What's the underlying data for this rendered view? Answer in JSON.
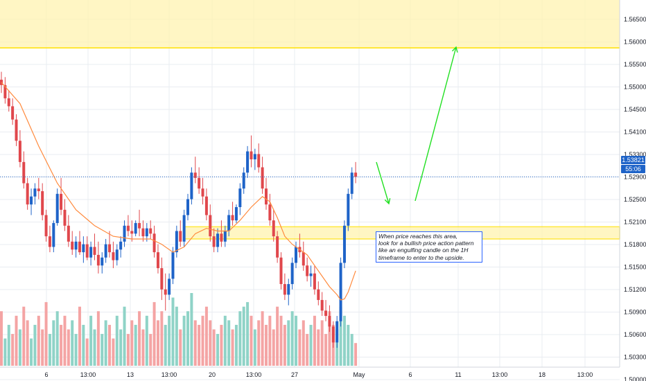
{
  "colors": {
    "up": "#1e63c8",
    "down": "#e0474c",
    "ma": "#ff8a3d",
    "zone_fill": "#fff3b0",
    "zone_border": "#ffe100",
    "arrow": "#21e021",
    "price_line": "#1e63c8",
    "badge": "#1e63c8",
    "vol_up": "#8fd3c7",
    "vol_down": "#f4a4a4",
    "grid": "#e9ecf1",
    "text": "#131722"
  },
  "annotation": {
    "lines": [
      "When price reaches this area,",
      "look for a bullish price action pattern",
      "like an engulfing candle on the 1H",
      "timeframe to enter to the upside."
    ]
  },
  "price_badge": {
    "price": "1.53821",
    "countdown": "55:06"
  },
  "chart_data": {
    "type": "candlestick",
    "grid": true,
    "ylim": [
      1.5,
      1.571
    ],
    "yticks": [
      "1.56500",
      "1.56000",
      "1.55500",
      "1.55000",
      "1.54500",
      "1.54100",
      "1.53300",
      "1.52900",
      "1.52500",
      "1.52100",
      "1.51800",
      "1.51500",
      "1.51200",
      "1.50900",
      "1.50600",
      "1.50300",
      "1.50000"
    ],
    "xticks": [
      "6",
      "13:00",
      "13",
      "13:00",
      "20",
      "13:00",
      "27",
      "May",
      "6",
      "11",
      "13:00",
      "18",
      "13:00"
    ],
    "last_price": 1.53821,
    "zones": [
      {
        "from": 1.5625,
        "to": 1.571
      },
      {
        "from": 1.5265,
        "to": 1.5288
      }
    ],
    "candles": [
      [
        1.5565,
        1.558,
        1.554,
        1.5555
      ],
      [
        1.5555,
        1.557,
        1.552,
        1.553
      ],
      [
        1.553,
        1.5545,
        1.5505,
        1.5515
      ],
      [
        1.5515,
        1.553,
        1.548,
        1.549
      ],
      [
        1.549,
        1.55,
        1.544,
        1.545
      ],
      [
        1.545,
        1.547,
        1.54,
        1.541
      ],
      [
        1.541,
        1.543,
        1.536,
        1.537
      ],
      [
        1.537,
        1.538,
        1.532,
        1.533
      ],
      [
        1.533,
        1.536,
        1.531,
        1.5345
      ],
      [
        1.5345,
        1.537,
        1.533,
        1.536
      ],
      [
        1.536,
        1.538,
        1.534,
        1.5355
      ],
      [
        1.5355,
        1.537,
        1.53,
        1.531
      ],
      [
        1.531,
        1.532,
        1.526,
        1.527
      ],
      [
        1.527,
        1.529,
        1.524,
        1.525
      ],
      [
        1.525,
        1.53,
        1.524,
        1.5295
      ],
      [
        1.5295,
        1.536,
        1.529,
        1.535
      ],
      [
        1.535,
        1.538,
        1.531,
        1.532
      ],
      [
        1.532,
        1.534,
        1.528,
        1.529
      ],
      [
        1.529,
        1.531,
        1.525,
        1.526
      ],
      [
        1.526,
        1.528,
        1.5235,
        1.5245
      ],
      [
        1.5245,
        1.527,
        1.523,
        1.526
      ],
      [
        1.526,
        1.528,
        1.5235,
        1.524
      ],
      [
        1.524,
        1.527,
        1.522,
        1.5255
      ],
      [
        1.5255,
        1.527,
        1.5225,
        1.523
      ],
      [
        1.523,
        1.526,
        1.5215,
        1.525
      ],
      [
        1.525,
        1.5275,
        1.5225,
        1.5235
      ],
      [
        1.5235,
        1.526,
        1.52,
        1.5215
      ],
      [
        1.5215,
        1.524,
        1.52,
        1.523
      ],
      [
        1.523,
        1.5265,
        1.522,
        1.5255
      ],
      [
        1.5255,
        1.528,
        1.523,
        1.524
      ],
      [
        1.524,
        1.526,
        1.521,
        1.5225
      ],
      [
        1.5225,
        1.5255,
        1.5215,
        1.5245
      ],
      [
        1.5245,
        1.527,
        1.523,
        1.526
      ],
      [
        1.526,
        1.53,
        1.525,
        1.529
      ],
      [
        1.529,
        1.531,
        1.527,
        1.528
      ],
      [
        1.528,
        1.53,
        1.526,
        1.5275
      ],
      [
        1.5275,
        1.53,
        1.527,
        1.5295
      ],
      [
        1.5295,
        1.532,
        1.527,
        1.5285
      ],
      [
        1.5285,
        1.53,
        1.526,
        1.527
      ],
      [
        1.527,
        1.5295,
        1.526,
        1.5285
      ],
      [
        1.5285,
        1.53,
        1.5265,
        1.5275
      ],
      [
        1.5275,
        1.529,
        1.523,
        1.524
      ],
      [
        1.524,
        1.5255,
        1.52,
        1.521
      ],
      [
        1.521,
        1.523,
        1.515,
        1.517
      ],
      [
        1.517,
        1.52,
        1.513,
        1.516
      ],
      [
        1.516,
        1.52,
        1.515,
        1.519
      ],
      [
        1.519,
        1.525,
        1.518,
        1.524
      ],
      [
        1.524,
        1.529,
        1.523,
        1.528
      ],
      [
        1.528,
        1.53,
        1.525,
        1.526
      ],
      [
        1.526,
        1.532,
        1.525,
        1.531
      ],
      [
        1.531,
        1.535,
        1.53,
        1.534
      ],
      [
        1.534,
        1.54,
        1.533,
        1.539
      ],
      [
        1.539,
        1.542,
        1.537,
        1.538
      ],
      [
        1.538,
        1.54,
        1.535,
        1.536
      ],
      [
        1.536,
        1.538,
        1.533,
        1.5345
      ],
      [
        1.5345,
        1.536,
        1.53,
        1.531
      ],
      [
        1.531,
        1.533,
        1.526,
        1.527
      ],
      [
        1.527,
        1.5285,
        1.524,
        1.525
      ],
      [
        1.525,
        1.5285,
        1.524,
        1.5275
      ],
      [
        1.5275,
        1.53,
        1.525,
        1.526
      ],
      [
        1.526,
        1.529,
        1.525,
        1.528
      ],
      [
        1.528,
        1.532,
        1.527,
        1.531
      ],
      [
        1.531,
        1.5335,
        1.529,
        1.53
      ],
      [
        1.53,
        1.533,
        1.5295,
        1.5325
      ],
      [
        1.5325,
        1.537,
        1.531,
        1.536
      ],
      [
        1.536,
        1.54,
        1.535,
        1.539
      ],
      [
        1.539,
        1.544,
        1.538,
        1.543
      ],
      [
        1.543,
        1.546,
        1.54,
        1.5415
      ],
      [
        1.5415,
        1.5435,
        1.5395,
        1.5425
      ],
      [
        1.5425,
        1.5445,
        1.539,
        1.54
      ],
      [
        1.54,
        1.542,
        1.535,
        1.536
      ],
      [
        1.536,
        1.538,
        1.532,
        1.533
      ],
      [
        1.533,
        1.535,
        1.529,
        1.53
      ],
      [
        1.53,
        1.532,
        1.526,
        1.527
      ],
      [
        1.527,
        1.528,
        1.522,
        1.523
      ],
      [
        1.523,
        1.524,
        1.517,
        1.518
      ],
      [
        1.518,
        1.52,
        1.515,
        1.516
      ],
      [
        1.516,
        1.519,
        1.514,
        1.518
      ],
      [
        1.518,
        1.523,
        1.517,
        1.522
      ],
      [
        1.522,
        1.526,
        1.521,
        1.525
      ],
      [
        1.525,
        1.5275,
        1.523,
        1.524
      ],
      [
        1.524,
        1.526,
        1.5205,
        1.5215
      ],
      [
        1.5215,
        1.523,
        1.5185,
        1.5195
      ],
      [
        1.5195,
        1.5215,
        1.5175,
        1.52
      ],
      [
        1.52,
        1.5215,
        1.516,
        1.517
      ],
      [
        1.517,
        1.5185,
        1.514,
        1.515
      ],
      [
        1.515,
        1.5165,
        1.512,
        1.513
      ],
      [
        1.513,
        1.515,
        1.511,
        1.512
      ],
      [
        1.512,
        1.514,
        1.509,
        1.51
      ],
      [
        1.51,
        1.511,
        1.506,
        1.507
      ],
      [
        1.507,
        1.512,
        1.506,
        1.511
      ],
      [
        1.511,
        1.523,
        1.51,
        1.522
      ],
      [
        1.522,
        1.53,
        1.521,
        1.529
      ],
      [
        1.529,
        1.536,
        1.528,
        1.535
      ],
      [
        1.535,
        1.54,
        1.534,
        1.539
      ],
      [
        1.539,
        1.541,
        1.537,
        1.53821
      ]
    ],
    "volume": [
      [
        60,
        0
      ],
      [
        30,
        1
      ],
      [
        45,
        1
      ],
      [
        35,
        0
      ],
      [
        55,
        0
      ],
      [
        40,
        1
      ],
      [
        65,
        0
      ],
      [
        50,
        0
      ],
      [
        30,
        1
      ],
      [
        45,
        1
      ],
      [
        55,
        0
      ],
      [
        40,
        0
      ],
      [
        70,
        0
      ],
      [
        35,
        1
      ],
      [
        50,
        1
      ],
      [
        60,
        1
      ],
      [
        45,
        0
      ],
      [
        55,
        0
      ],
      [
        40,
        0
      ],
      [
        50,
        1
      ],
      [
        35,
        1
      ],
      [
        65,
        0
      ],
      [
        45,
        1
      ],
      [
        30,
        0
      ],
      [
        55,
        1
      ],
      [
        40,
        1
      ],
      [
        60,
        0
      ],
      [
        35,
        1
      ],
      [
        50,
        1
      ],
      [
        45,
        0
      ],
      [
        30,
        0
      ],
      [
        55,
        1
      ],
      [
        40,
        1
      ],
      [
        65,
        1
      ],
      [
        35,
        0
      ],
      [
        50,
        0
      ],
      [
        45,
        1
      ],
      [
        60,
        0
      ],
      [
        40,
        0
      ],
      [
        55,
        1
      ],
      [
        35,
        0
      ],
      [
        70,
        0
      ],
      [
        50,
        0
      ],
      [
        60,
        0
      ],
      [
        45,
        1
      ],
      [
        55,
        1
      ],
      [
        75,
        1
      ],
      [
        65,
        1
      ],
      [
        40,
        0
      ],
      [
        55,
        1
      ],
      [
        60,
        1
      ],
      [
        80,
        1
      ],
      [
        50,
        0
      ],
      [
        45,
        0
      ],
      [
        55,
        0
      ],
      [
        65,
        0
      ],
      [
        50,
        0
      ],
      [
        40,
        0
      ],
      [
        35,
        1
      ],
      [
        45,
        0
      ],
      [
        55,
        1
      ],
      [
        50,
        1
      ],
      [
        40,
        0
      ],
      [
        45,
        1
      ],
      [
        60,
        1
      ],
      [
        65,
        1
      ],
      [
        70,
        1
      ],
      [
        55,
        0
      ],
      [
        40,
        1
      ],
      [
        50,
        0
      ],
      [
        60,
        0
      ],
      [
        45,
        0
      ],
      [
        55,
        0
      ],
      [
        40,
        0
      ],
      [
        65,
        0
      ],
      [
        55,
        0
      ],
      [
        45,
        0
      ],
      [
        50,
        1
      ],
      [
        60,
        1
      ],
      [
        55,
        1
      ],
      [
        40,
        0
      ],
      [
        50,
        0
      ],
      [
        35,
        0
      ],
      [
        45,
        1
      ],
      [
        55,
        0
      ],
      [
        40,
        0
      ],
      [
        50,
        0
      ],
      [
        35,
        0
      ],
      [
        60,
        0
      ],
      [
        45,
        0
      ],
      [
        40,
        1
      ],
      [
        65,
        1
      ],
      [
        55,
        1
      ],
      [
        45,
        1
      ],
      [
        35,
        1
      ],
      [
        25,
        0
      ]
    ],
    "moving_average": [
      [
        0,
        1.556
      ],
      [
        5,
        1.552
      ],
      [
        10,
        1.544
      ],
      [
        15,
        1.537
      ],
      [
        20,
        1.532
      ],
      [
        25,
        1.529
      ],
      [
        30,
        1.527
      ],
      [
        35,
        1.5265
      ],
      [
        40,
        1.5265
      ],
      [
        43,
        1.5255
      ],
      [
        46,
        1.524
      ],
      [
        49,
        1.525
      ],
      [
        52,
        1.5275
      ],
      [
        55,
        1.5285
      ],
      [
        58,
        1.528
      ],
      [
        61,
        1.528
      ],
      [
        64,
        1.53
      ],
      [
        67,
        1.5325
      ],
      [
        70,
        1.5345
      ],
      [
        72,
        1.5335
      ],
      [
        74,
        1.5305
      ],
      [
        76,
        1.527
      ],
      [
        78,
        1.5255
      ],
      [
        80,
        1.5245
      ],
      [
        82,
        1.5235
      ],
      [
        84,
        1.5215
      ],
      [
        86,
        1.5195
      ],
      [
        88,
        1.5175
      ],
      [
        90,
        1.516
      ],
      [
        91,
        1.515
      ],
      [
        92,
        1.5152
      ],
      [
        93,
        1.5165
      ],
      [
        94,
        1.5185
      ],
      [
        95,
        1.5205
      ]
    ]
  }
}
